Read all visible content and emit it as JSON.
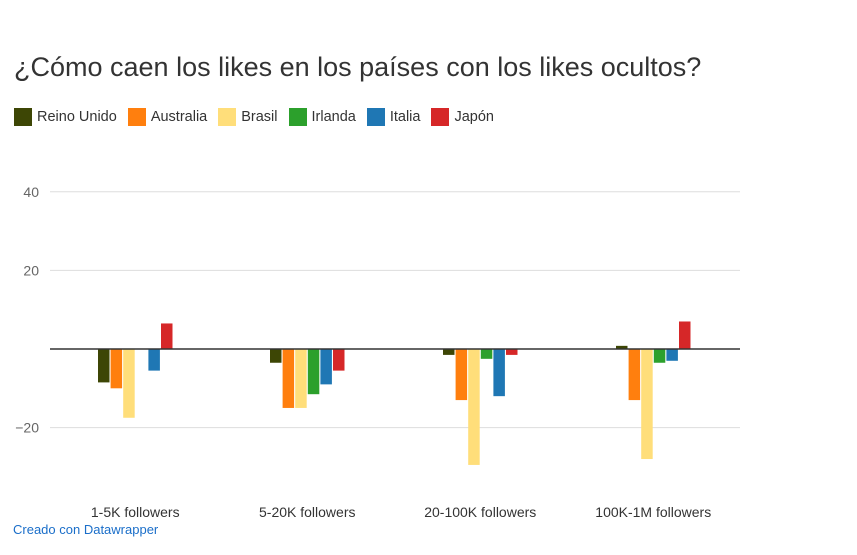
{
  "chart_data": {
    "type": "bar",
    "title": "¿Cómo caen los likes en los países con los likes ocultos?",
    "xlabel": "",
    "ylabel": "",
    "ylim": [
      -30,
      45
    ],
    "yticks": [
      40,
      20,
      -20
    ],
    "ytick_labels": [
      "40",
      "20",
      "−20"
    ],
    "grid": true,
    "legend_position": "top-left",
    "categories": [
      "1-5K followers",
      "5-20K followers",
      "20-100K followers",
      "100K-1M followers"
    ],
    "series": [
      {
        "name": "Reino Unido",
        "color": "#3d4605",
        "values": [
          -8.5,
          -3.5,
          -1.5,
          0.8
        ]
      },
      {
        "name": "Australia",
        "color": "#ff7f0e",
        "values": [
          -10,
          -15,
          -13,
          -13
        ]
      },
      {
        "name": "Brasil",
        "color": "#ffde7a",
        "values": [
          -17.5,
          -15,
          -29.5,
          -28
        ]
      },
      {
        "name": "Irlanda",
        "color": "#2ca02c",
        "values": [
          0,
          -11.5,
          -2.5,
          -3.5
        ]
      },
      {
        "name": "Italia",
        "color": "#1f77b4",
        "values": [
          -5.5,
          -9,
          -12,
          -3
        ]
      },
      {
        "name": "Japón",
        "color": "#d62728",
        "values": [
          6.5,
          -5.5,
          -1.5,
          7
        ]
      }
    ]
  },
  "credit": "Creado con Datawrapper"
}
